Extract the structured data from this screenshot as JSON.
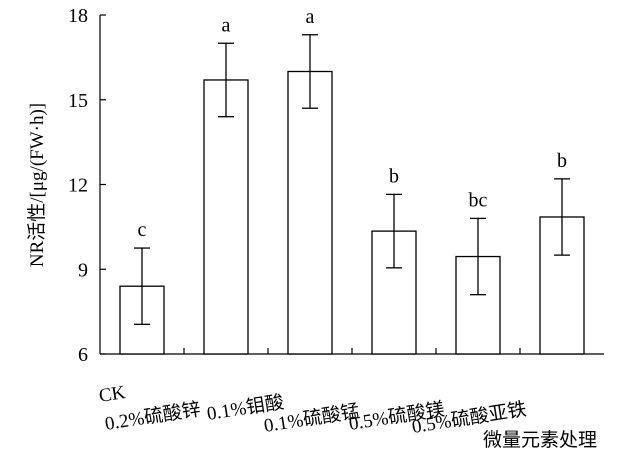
{
  "chart_data": {
    "type": "bar",
    "categories": [
      "CK",
      "0.2%硫酸锌",
      "0.1%钼酸",
      "0.1%硫酸锰",
      "0.5%硫酸镁",
      "0.5%硫酸亚铁"
    ],
    "values": [
      8.4,
      15.7,
      16.0,
      10.35,
      9.45,
      10.85
    ],
    "error": [
      1.35,
      1.3,
      1.3,
      1.3,
      1.35,
      1.35
    ],
    "significance": [
      "c",
      "a",
      "a",
      "b",
      "bc",
      "b"
    ],
    "title": "",
    "xlabel": "微量元素处理",
    "ylabel": "NR活性/[μg/(FW·h)]",
    "ylim": [
      6,
      18
    ],
    "yticks": [
      6,
      9,
      12,
      15,
      18
    ],
    "grid": false,
    "legend": "none",
    "bar_fill": "#ffffff",
    "bar_stroke": "#000000"
  }
}
